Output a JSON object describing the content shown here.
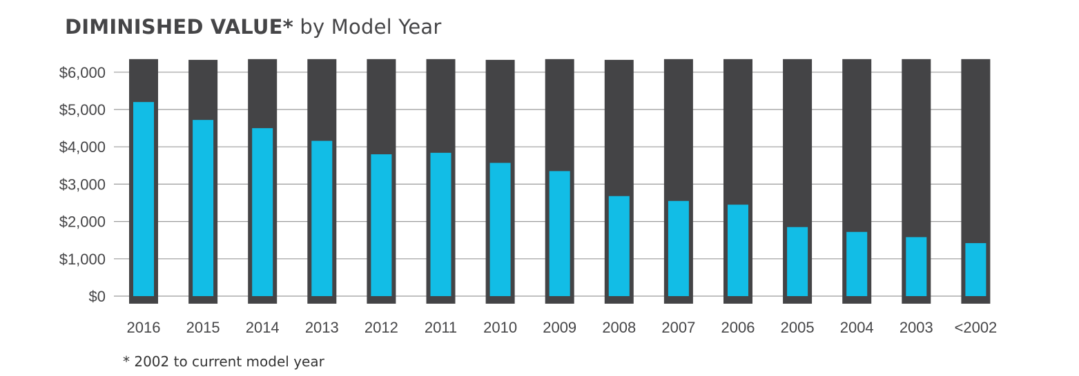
{
  "title": {
    "bold": "DIMINISHED VALUE*",
    "light": "by Model Year"
  },
  "footnote": "* 2002 to current model year",
  "colors": {
    "max_bar": "#444446",
    "value_bar": "#12BDE6",
    "grid": "#9a9a9a",
    "text": "#454547"
  },
  "chart_data": {
    "type": "bar",
    "title": "DIMINISHED VALUE* by Model Year",
    "xlabel": "",
    "ylabel": "",
    "ylim": [
      0,
      6000
    ],
    "y_ticks": [
      {
        "value": 0,
        "label": "$0"
      },
      {
        "value": 1000,
        "label": "$1,000"
      },
      {
        "value": 2000,
        "label": "$2,000"
      },
      {
        "value": 3000,
        "label": "$3,000"
      },
      {
        "value": 4000,
        "label": "$4,000"
      },
      {
        "value": 5000,
        "label": "$5,000"
      },
      {
        "value": 6000,
        "label": "$6,000"
      }
    ],
    "grid": true,
    "categories": [
      "2016",
      "2015",
      "2014",
      "2013",
      "2012",
      "2011",
      "2010",
      "2009",
      "2008",
      "2007",
      "2006",
      "2005",
      "2004",
      "2003",
      "<2002"
    ],
    "series": [
      {
        "values": [
          6350,
          6330,
          6350,
          6350,
          6350,
          6350,
          6330,
          6350,
          6330,
          6350,
          6350,
          6350,
          6350,
          6350,
          6350
        ]
      },
      {
        "values": [
          5200,
          4720,
          4500,
          4160,
          3800,
          3840,
          3570,
          3350,
          2680,
          2550,
          2450,
          1850,
          1720,
          1580,
          1420
        ]
      }
    ]
  }
}
